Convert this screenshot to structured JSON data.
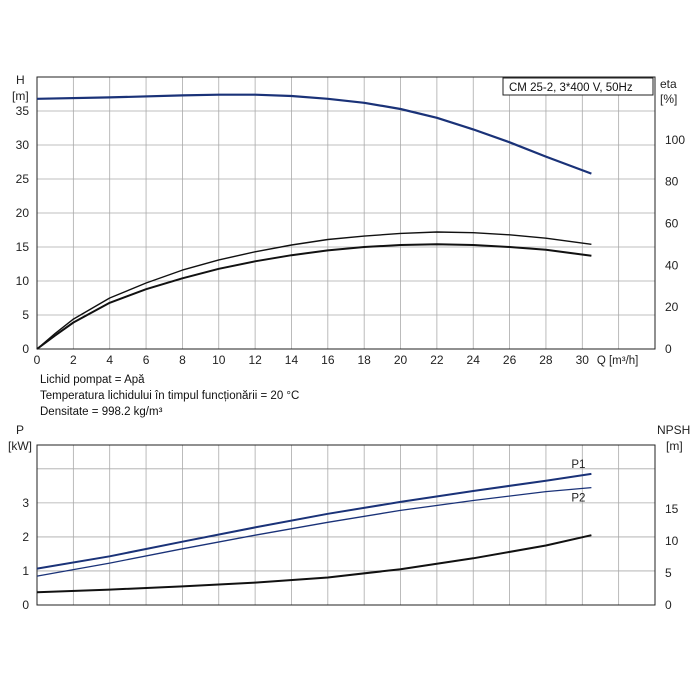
{
  "info": {
    "line1": "Lichid pompat = Apă",
    "line2": "Temperatura lichidului în timpul funcționării = 20 °C",
    "line3": "Densitate = 998.2 kg/m³"
  },
  "colors": {
    "grid": "#aaaaaa",
    "axis": "#222222",
    "blue": "#1a3278",
    "black": "#111111"
  },
  "chart_data": [
    {
      "type": "line",
      "title": "CM 25-2, 3*400 V, 50Hz",
      "xlabel": "Q [m³/h]",
      "ylabel": "H\n[m]",
      "ylabel_right": "eta\n[%]",
      "grid": true,
      "xlim": [
        0,
        34
      ],
      "ylim": [
        0,
        40
      ],
      "ylim_right": [
        0,
        130
      ],
      "x_ticks": [
        "0",
        "2",
        "4",
        "6",
        "8",
        "10",
        "12",
        "14",
        "16",
        "18",
        "20",
        "22",
        "24",
        "26",
        "28",
        "30"
      ],
      "y_ticks": [
        "0",
        "5",
        "10",
        "15",
        "20",
        "25",
        "30",
        "35"
      ],
      "y_right_ticks": [
        "0",
        "20",
        "40",
        "60",
        "80",
        "100"
      ],
      "series": [
        {
          "axis": "left",
          "color": "#1a3278",
          "x": [
            0,
            4,
            8,
            10,
            12,
            14,
            16,
            18,
            20,
            22,
            24,
            26,
            28,
            30.5
          ],
          "y": [
            36.8,
            37.0,
            37.3,
            37.4,
            37.4,
            37.2,
            36.8,
            36.2,
            35.3,
            34.0,
            32.3,
            30.4,
            28.3,
            25.8
          ]
        },
        {
          "axis": "left",
          "color": "#111111",
          "x": [
            0,
            1,
            2,
            4,
            6,
            8,
            10,
            12,
            14,
            16,
            18,
            20,
            22,
            24,
            26,
            28,
            30.5
          ],
          "y": [
            0,
            2.3,
            4.4,
            7.5,
            9.7,
            11.6,
            13.1,
            14.3,
            15.3,
            16.1,
            16.6,
            17.0,
            17.2,
            17.1,
            16.8,
            16.3,
            15.4
          ]
        },
        {
          "axis": "left",
          "color": "#111111",
          "x": [
            0,
            1,
            2,
            4,
            6,
            8,
            10,
            12,
            14,
            16,
            18,
            20,
            22,
            24,
            26,
            28,
            30.5
          ],
          "y": [
            0,
            2.0,
            3.9,
            6.8,
            8.8,
            10.4,
            11.8,
            12.9,
            13.8,
            14.5,
            15.0,
            15.3,
            15.4,
            15.3,
            15.0,
            14.6,
            13.7
          ]
        }
      ]
    },
    {
      "type": "line",
      "xlabel": "",
      "ylabel": "P\n[kW]",
      "ylabel_right": "NPSH\n[m]",
      "grid": true,
      "xlim": [
        0,
        34
      ],
      "ylim": [
        0,
        4.7
      ],
      "ylim_right": [
        0,
        25
      ],
      "y_ticks": [
        "0",
        "1",
        "2",
        "3"
      ],
      "y_right_ticks": [
        "0",
        "5",
        "10",
        "15"
      ],
      "series": [
        {
          "name": "P1",
          "axis": "left",
          "color": "#1a3278",
          "x": [
            0,
            4,
            8,
            12,
            16,
            20,
            24,
            28,
            30.5
          ],
          "y": [
            1.07,
            1.43,
            1.86,
            2.28,
            2.68,
            3.03,
            3.35,
            3.65,
            3.85
          ]
        },
        {
          "name": "P2",
          "axis": "left",
          "color": "#1a3278",
          "x": [
            0,
            4,
            8,
            12,
            16,
            20,
            24,
            28,
            30.5
          ],
          "y": [
            0.85,
            1.23,
            1.65,
            2.05,
            2.43,
            2.78,
            3.07,
            3.33,
            3.45
          ]
        },
        {
          "axis": "right",
          "color": "#111111",
          "x": [
            0,
            4,
            8,
            12,
            16,
            20,
            24,
            28,
            30.5
          ],
          "y": [
            2.0,
            2.4,
            2.9,
            3.5,
            4.3,
            5.6,
            7.3,
            9.3,
            10.9
          ]
        }
      ]
    }
  ]
}
